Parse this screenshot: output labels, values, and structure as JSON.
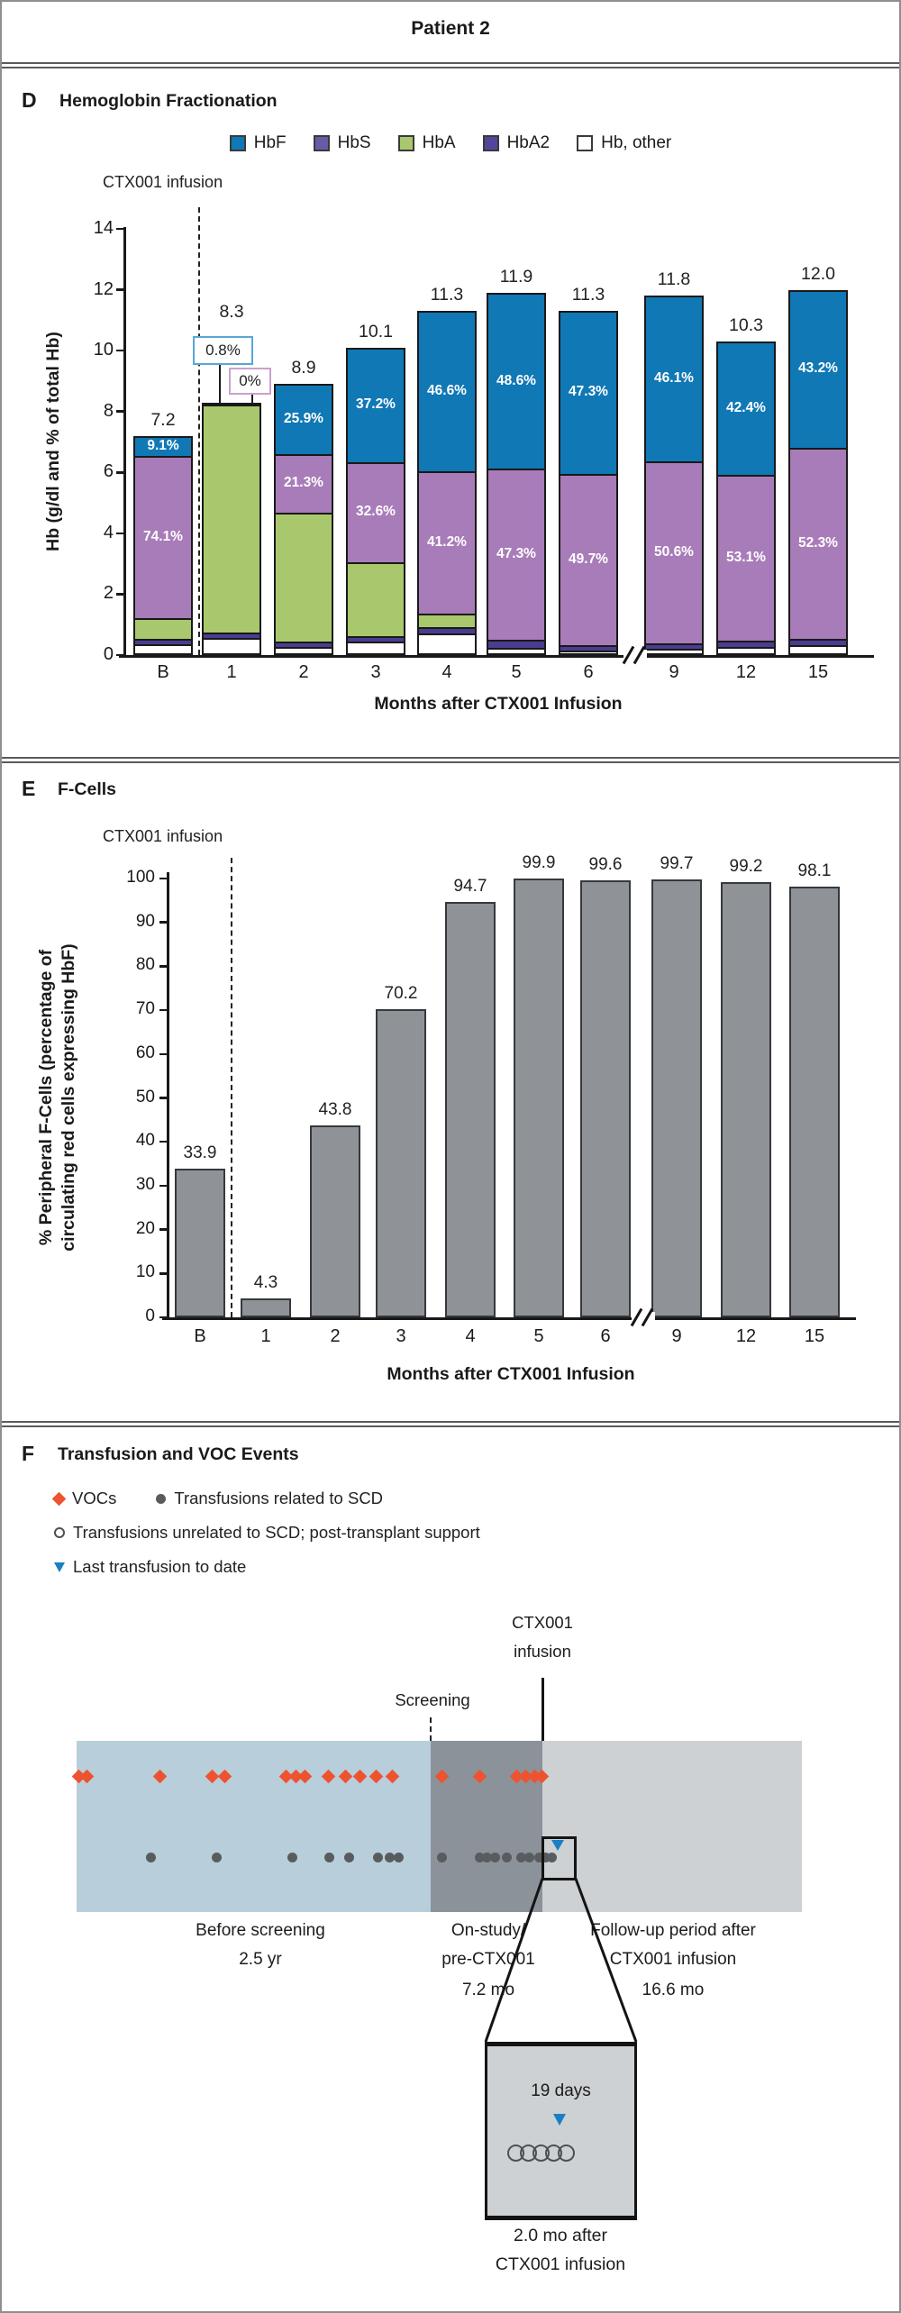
{
  "title": "Patient 2",
  "panels": {
    "d": {
      "letter": "D",
      "title": "Hemoglobin Fractionation",
      "infusion_label": "CTX001 infusion",
      "legend": [
        {
          "label": "HbF",
          "color": "#1078b5"
        },
        {
          "label": "HbS",
          "color": "#6a5aa5"
        },
        {
          "label": "HbA",
          "color": "#a9c86d"
        },
        {
          "label": "HbA2",
          "color": "#54459c"
        },
        {
          "label": "Hb, other",
          "color": "#ffffff"
        }
      ],
      "callout_hbf_border": "#5aa7d6",
      "callout_hbs_border": "#c9a2cc"
    },
    "e": {
      "letter": "E",
      "title": "F-Cells",
      "infusion_label": "CTX001 infusion",
      "y_label_line1": "% Peripheral F-Cells (percentage of",
      "y_label_line2": "circulating red cells expressing HbF)"
    },
    "f": {
      "letter": "F",
      "title": "Transfusion and VOC Events",
      "before_lines": [
        "Before screening",
        "2.5 yr"
      ],
      "onstudy_lines": [
        "On-study/",
        "pre-CTX001",
        "7.2 mo"
      ],
      "followup_lines": [
        "Follow-up period after",
        "CTX001 infusion",
        "16.6 mo"
      ]
    }
  },
  "chart_data": [
    {
      "type": "bar",
      "subtype": "stacked",
      "title": "Hemoglobin Fractionation",
      "ylabel": "Hb (g/dl and % of total Hb)",
      "xlabel": "Months after CTX001 Infusion",
      "ylim": [
        0,
        14
      ],
      "yticks": [
        0,
        2,
        4,
        6,
        8,
        10,
        12,
        14
      ],
      "categories": [
        "B",
        "1",
        "2",
        "3",
        "4",
        "5",
        "6",
        "9",
        "12",
        "15"
      ],
      "axis_break_between": [
        "6",
        "9"
      ],
      "infusion_line_after": "B",
      "totals": [
        7.2,
        8.3,
        8.9,
        10.1,
        11.3,
        11.9,
        11.3,
        11.8,
        10.3,
        12.0
      ],
      "total_labels": [
        "7.2",
        "8.3",
        "8.9",
        "10.1",
        "11.3",
        "11.9",
        "11.3",
        "11.8",
        "10.3",
        "12.0"
      ],
      "series": [
        {
          "name": "Hb, other",
          "color": "#ffffff",
          "values": [
            0.35,
            0.55,
            0.28,
            0.45,
            0.72,
            0.25,
            0.15,
            0.2,
            0.27,
            0.33
          ]
        },
        {
          "name": "HbA2",
          "color": "#4a3d91",
          "values": [
            0.17,
            0.2,
            0.17,
            0.17,
            0.2,
            0.24,
            0.19,
            0.19,
            0.19,
            0.21
          ]
        },
        {
          "name": "HbA",
          "color": "#a9c86d",
          "values": [
            0.68,
            7.48,
            4.24,
            2.43,
            0.45,
            0,
            0,
            0,
            0,
            0
          ]
        },
        {
          "name": "HbS",
          "color": "#a87cb8",
          "values": [
            5.34,
            0.0,
            1.9,
            3.29,
            4.66,
            5.63,
            5.62,
            5.97,
            5.47,
            6.28
          ]
        },
        {
          "name": "HbF",
          "color": "#1078b5",
          "values": [
            0.66,
            0.07,
            2.31,
            3.76,
            5.27,
            5.78,
            5.34,
            5.44,
            4.37,
            5.18
          ]
        }
      ],
      "hbf_pct_labels": [
        "9.1%",
        "0.8%",
        "25.9%",
        "37.2%",
        "46.6%",
        "48.6%",
        "47.3%",
        "46.1%",
        "42.4%",
        "43.2%"
      ],
      "hbs_pct_labels": [
        "74.1%",
        "0%",
        "21.3%",
        "32.6%",
        "41.2%",
        "47.3%",
        "49.7%",
        "50.6%",
        "53.1%",
        "52.3%"
      ],
      "callout_category": "1"
    },
    {
      "type": "bar",
      "title": "F-Cells",
      "ylabel": "% Peripheral F-Cells (percentage of circulating red cells expressing HbF)",
      "xlabel": "Months after CTX001 Infusion",
      "ylim": [
        0,
        100
      ],
      "yticks": [
        0,
        10,
        20,
        30,
        40,
        50,
        60,
        70,
        80,
        90,
        100
      ],
      "categories": [
        "B",
        "1",
        "2",
        "3",
        "4",
        "5",
        "6",
        "9",
        "12",
        "15"
      ],
      "axis_break_between": [
        "6",
        "9"
      ],
      "values": [
        33.9,
        4.3,
        43.8,
        70.2,
        94.7,
        99.9,
        99.6,
        99.7,
        99.2,
        98.1
      ],
      "bar_color": "#8f9397",
      "infusion_line_after": "B"
    },
    {
      "type": "timeline",
      "title": "Transfusion and VOC Events",
      "legend": [
        {
          "marker": "diamond",
          "color": "#ee5330",
          "label": "VOCs"
        },
        {
          "marker": "filled-circle",
          "color": "#595c5f",
          "label": "Transfusions related to SCD"
        },
        {
          "marker": "open-circle",
          "color": "#4e5154",
          "label": "Transfusions unrelated to SCD; post-transplant support"
        },
        {
          "marker": "triangle-down",
          "color": "#1b7fc4",
          "label": "Last transfusion to date"
        }
      ],
      "annotations": {
        "screening": "Screening",
        "infusion_line1": "CTX001",
        "infusion_line2": "infusion"
      },
      "periods": [
        {
          "label": "Before screening",
          "duration": "2.5 yr",
          "color": "#b9cedb",
          "x_range": [
            83,
            476
          ]
        },
        {
          "label": "On-study/ pre-CTX001",
          "duration": "7.2 mo",
          "color": "#8b9299",
          "x_range": [
            476,
            600
          ]
        },
        {
          "label": "Follow-up period after CTX001 infusion",
          "duration": "16.6 mo",
          "color": "#cdd1d3",
          "x_range": [
            600,
            888
          ]
        }
      ],
      "events": {
        "voc_x": [
          85,
          94,
          175,
          233,
          247,
          315,
          326,
          336,
          362,
          381,
          397,
          415,
          433,
          488,
          530,
          571,
          581,
          591,
          599
        ],
        "transfusion_x": [
          165,
          238,
          322,
          363,
          385,
          417,
          430,
          440,
          488,
          530,
          538,
          547,
          560,
          576,
          585,
          596,
          603,
          610
        ],
        "last_transfusion_x": 617
      },
      "inset": {
        "zoom_label": "19 days",
        "circle_count": 5,
        "caption_line1": "2.0 mo after",
        "caption_line2": "CTX001 infusion",
        "box_color": "#cdd1d3"
      }
    }
  ]
}
